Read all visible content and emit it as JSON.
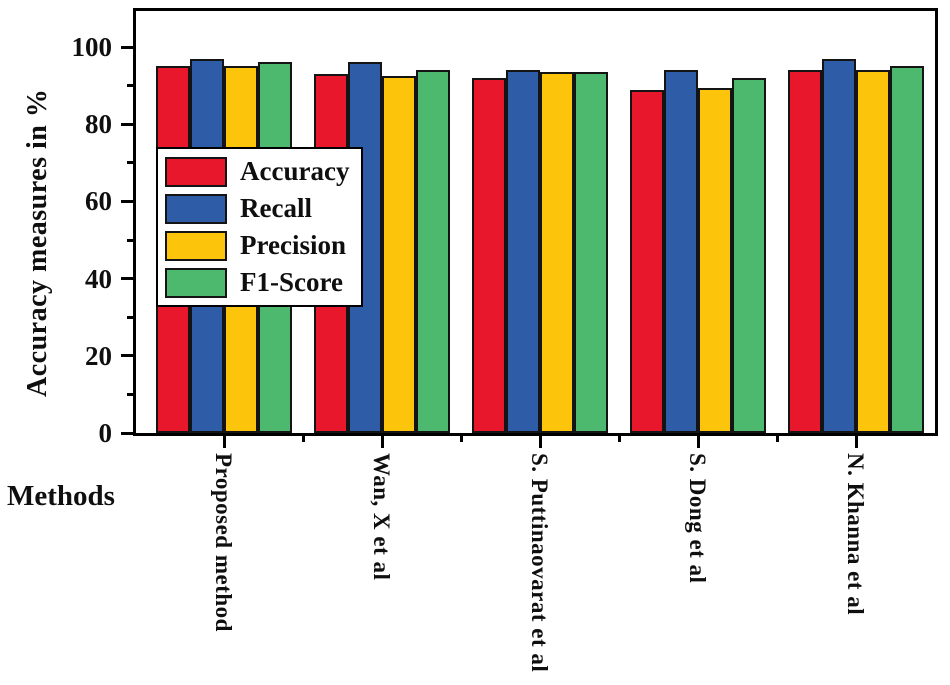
{
  "chart_data": {
    "type": "bar",
    "title": "",
    "xlabel": "Methods",
    "ylabel": "Accuracy measures in %",
    "categories": [
      "Proposed method",
      "Wan, X et al",
      "S. Puttinaovarat et al",
      "S. Dong et al",
      "N. Khanna et al"
    ],
    "series": [
      {
        "name": "Accuracy",
        "color": "#e8172b",
        "values": [
          95,
          93,
          92,
          89,
          94
        ]
      },
      {
        "name": "Recall",
        "color": "#2e5ca6",
        "values": [
          97,
          96,
          94,
          94,
          97
        ]
      },
      {
        "name": "Precision",
        "color": "#fcc50c",
        "values": [
          95,
          92.5,
          93.5,
          89.5,
          94
        ]
      },
      {
        "name": "F1-Score",
        "color": "#4cb96e",
        "values": [
          96,
          94,
          93.5,
          92,
          95
        ]
      }
    ],
    "ylim": [
      0,
      110
    ],
    "yticks_major": [
      0,
      20,
      40,
      60,
      80,
      100
    ],
    "yticks_minor": [
      10,
      30,
      50,
      70,
      90
    ],
    "grid": false,
    "legend_position": "inside-upper-left",
    "axis_color": "#000000"
  }
}
